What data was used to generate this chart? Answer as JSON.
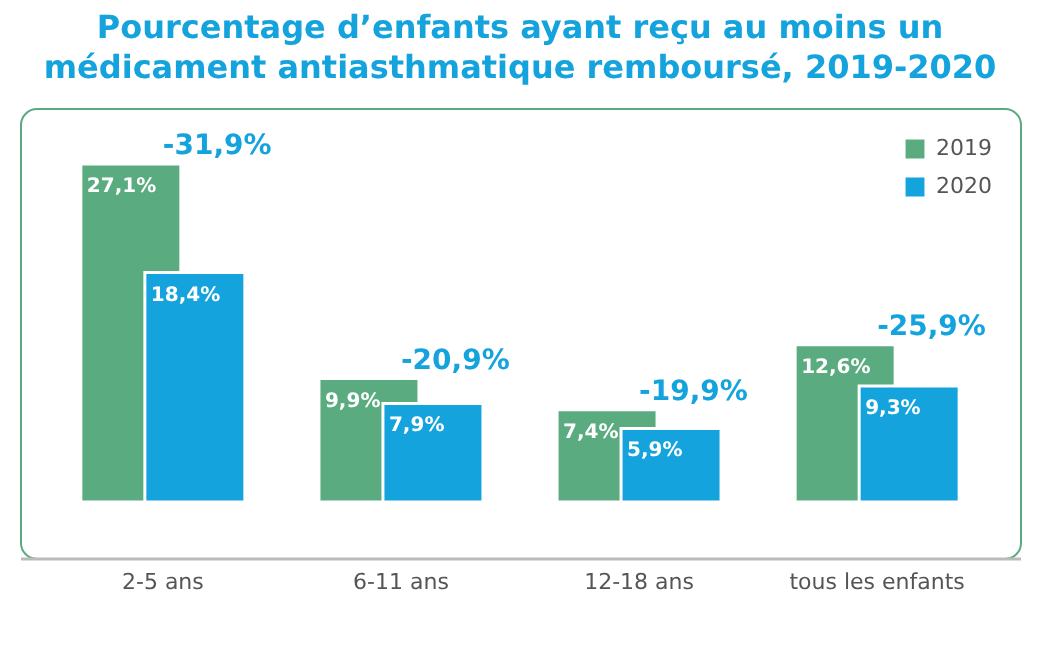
{
  "chart_data": {
    "type": "bar",
    "title": "Pourcentage d’enfants ayant reçu au moins un médicament antiasthmatique remboursé, 2019-2020",
    "categories": [
      "2-5 ans",
      "6-11 ans",
      "12-18 ans",
      "tous les enfants"
    ],
    "series": [
      {
        "name": "2019",
        "color": "#5aab7f",
        "values": [
          27.1,
          9.9,
          7.4,
          12.6
        ],
        "value_labels": [
          "27,1%",
          "9,9%",
          "7,4%",
          "12,6%"
        ]
      },
      {
        "name": "2020",
        "color": "#14a3dc",
        "values": [
          18.4,
          7.9,
          5.9,
          9.3
        ],
        "value_labels": [
          "18,4%",
          "7,9%",
          "5,9%",
          "9,3%"
        ]
      }
    ],
    "annotations": [
      {
        "text": "-31,9%",
        "x": "2-5 ans",
        "y": 27.1
      },
      {
        "text": "-20,9%",
        "x": "6-11 ans",
        "y": 9.9
      },
      {
        "text": "-19,9%",
        "x": "12-18 ans",
        "y": 7.4
      },
      {
        "text": "-25,9%",
        "x": "tous les enfants",
        "y": 12.6
      }
    ],
    "legend": "top right",
    "grid": false
  }
}
